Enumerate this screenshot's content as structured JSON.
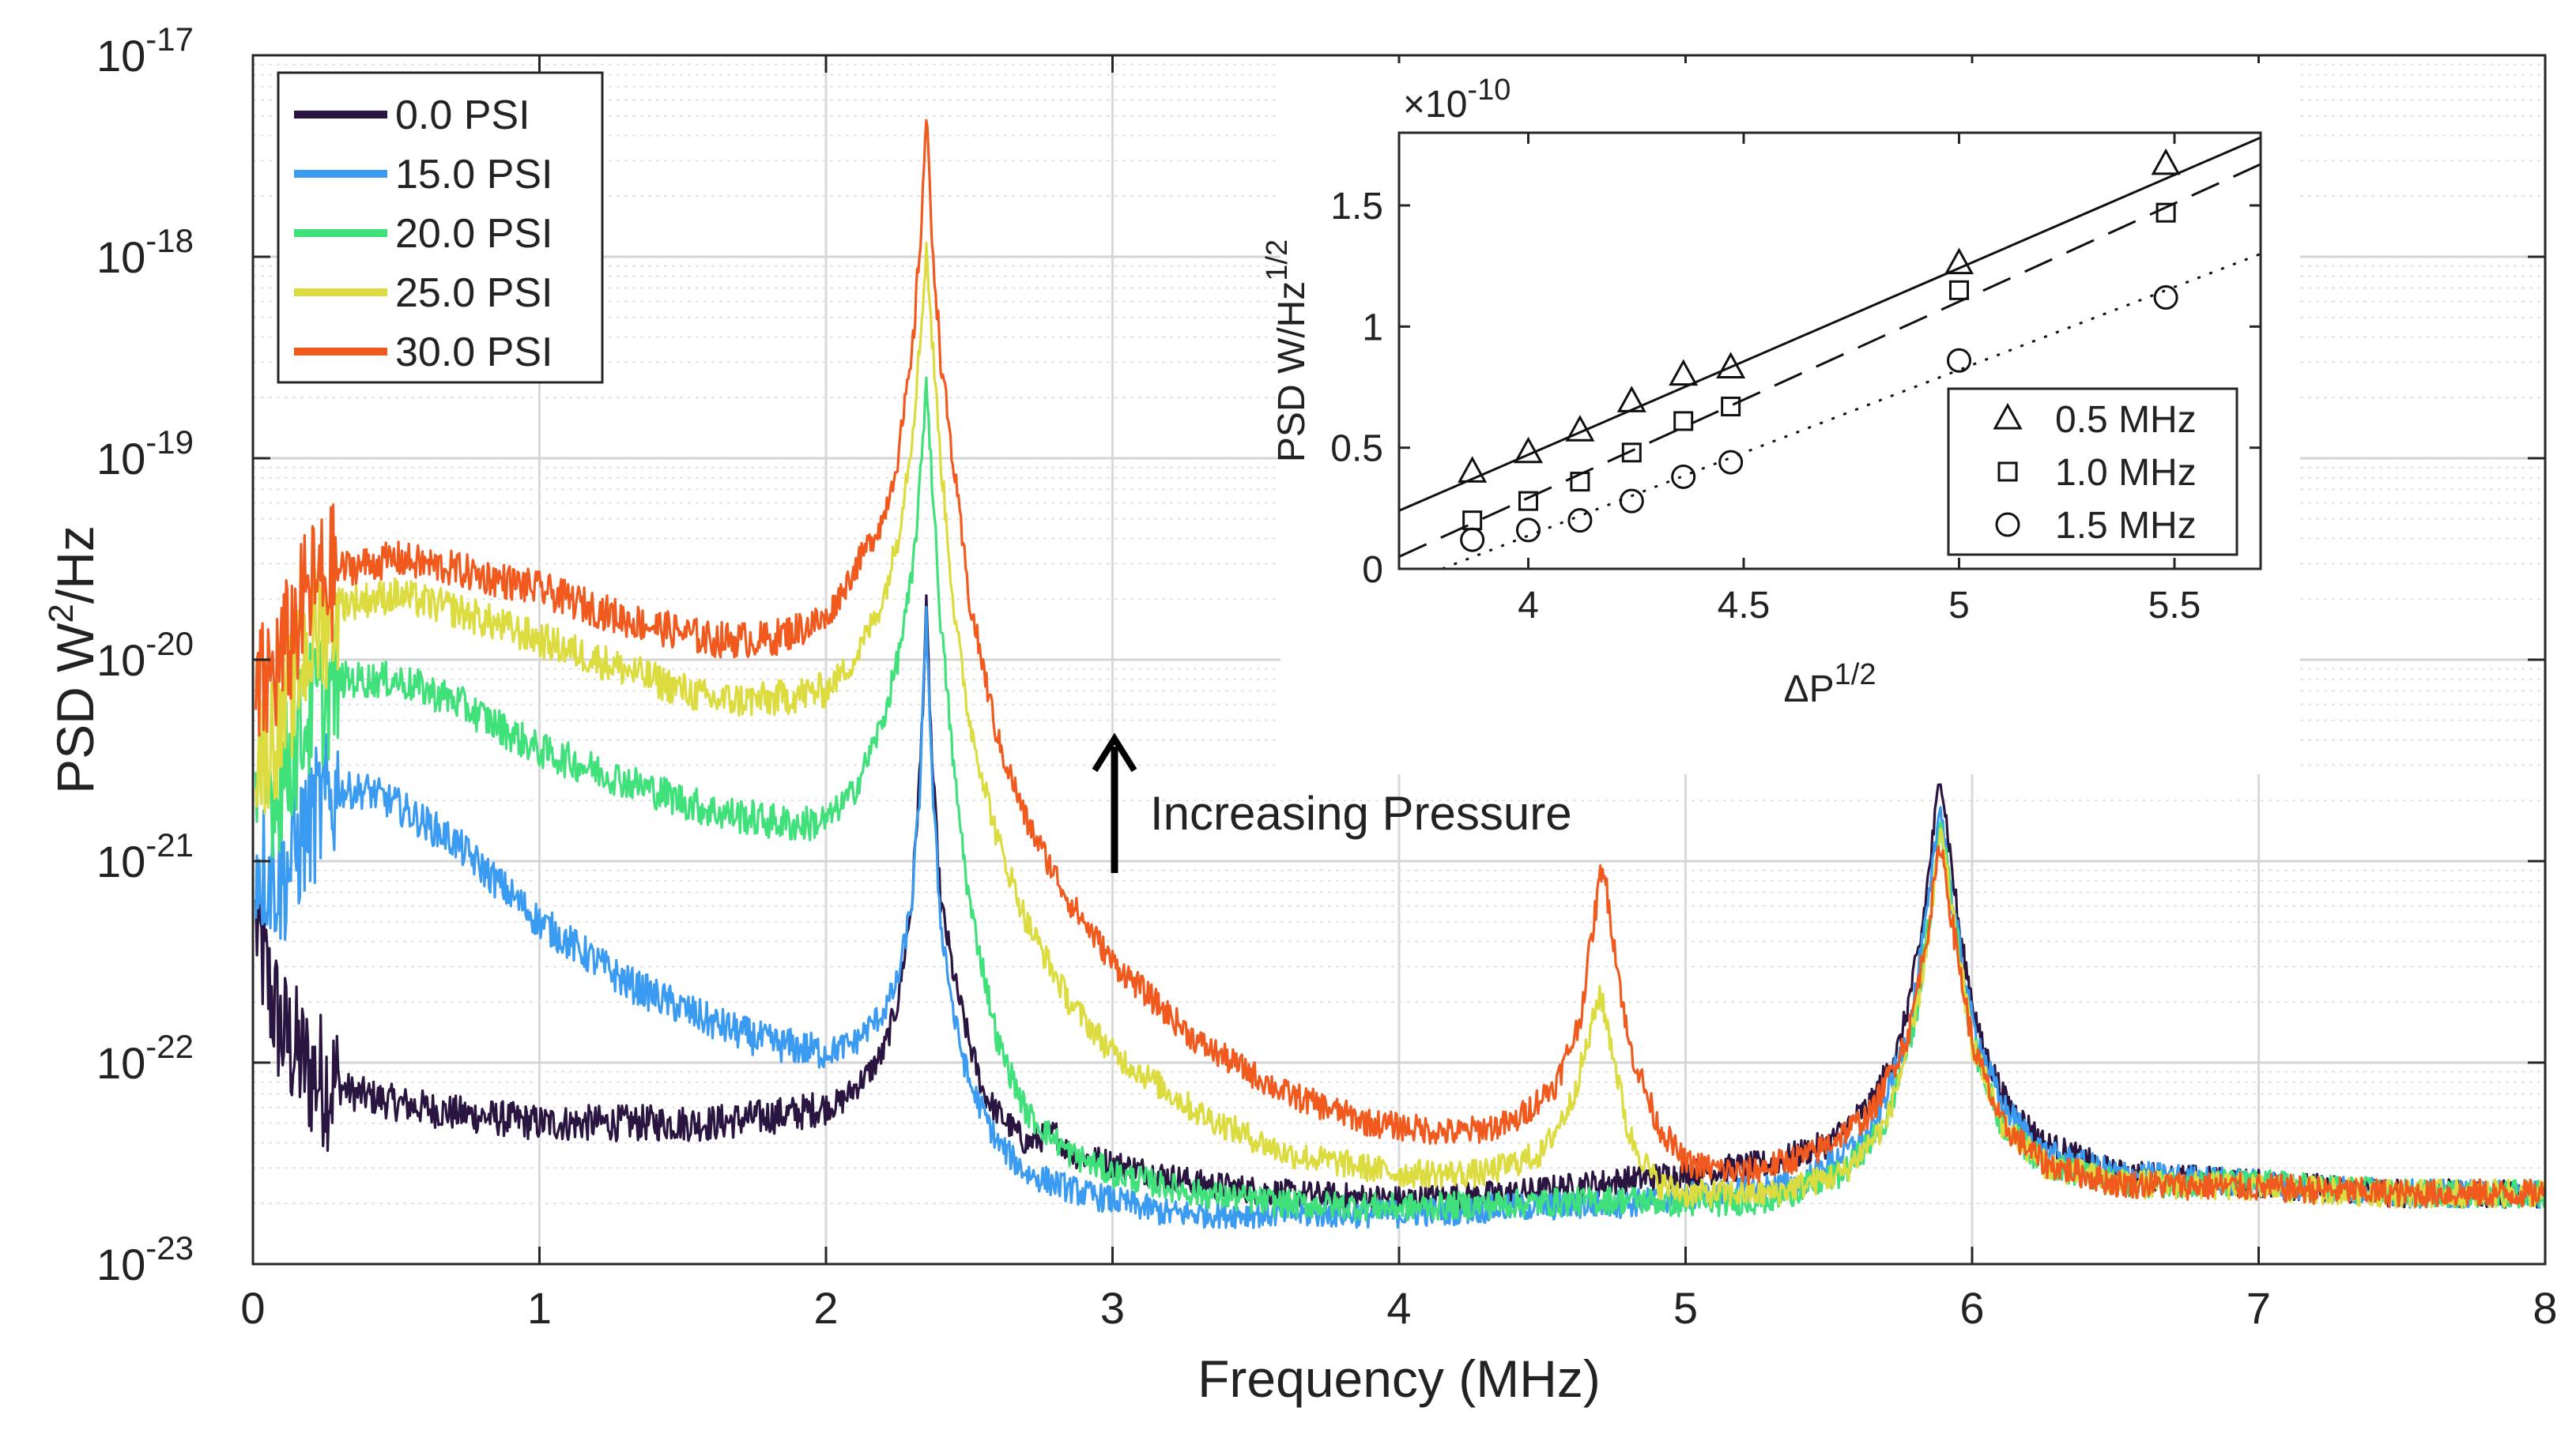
{
  "chart_data": [
    {
      "type": "line",
      "title": "",
      "xlabel": "Frequency (MHz)",
      "ylabel": "PSD W²/Hz",
      "ylabel_base": "PSD W",
      "ylabel_sup": "2",
      "ylabel_tail": "/Hz",
      "yscale": "log",
      "xlim": [
        0,
        8
      ],
      "ylim_exp": [
        -23,
        -17
      ],
      "xticks": [
        0,
        1,
        2,
        3,
        4,
        5,
        6,
        7,
        8
      ],
      "xtick_labels": [
        "0",
        "1",
        "2",
        "3",
        "4",
        "5",
        "6",
        "7",
        "8"
      ],
      "yticks_exp": [
        -23,
        -22,
        -21,
        -20,
        -19,
        -18,
        -17
      ],
      "ytick_base": "10",
      "ytick_exp_labels": [
        "-23",
        "-22",
        "-21",
        "-20",
        "-19",
        "-18",
        "-17"
      ],
      "grid": true,
      "legend_position": "top-left",
      "annotation": "Increasing Pressure",
      "annotation_arrow": "up",
      "series": [
        {
          "name": "0.0 PSI",
          "color": "#2a1440",
          "x": [
            0.01,
            0.05,
            0.1,
            0.2,
            0.35,
            0.5,
            0.7,
            1.0,
            1.3,
            1.6,
            1.9,
            2.05,
            2.15,
            2.2,
            2.25,
            2.3,
            2.33,
            2.35,
            2.37,
            2.4,
            2.45,
            2.5,
            2.55,
            2.6,
            2.7,
            2.8,
            2.85,
            3.0,
            3.3,
            3.6,
            4.0,
            4.4,
            4.7,
            5.0,
            5.3,
            5.5,
            5.65,
            5.75,
            5.82,
            5.87,
            5.89,
            5.91,
            5.96,
            6.03,
            6.12,
            6.25,
            6.5,
            7.0,
            7.5,
            8.0
          ],
          "logy": [
            -21.3,
            -21.6,
            -21.85,
            -22.05,
            -22.15,
            -22.2,
            -22.25,
            -22.3,
            -22.3,
            -22.3,
            -22.25,
            -22.2,
            -22.05,
            -21.95,
            -21.7,
            -21.2,
            -20.5,
            -19.75,
            -20.5,
            -21.2,
            -21.6,
            -21.9,
            -22.15,
            -22.25,
            -22.4,
            -22.35,
            -22.45,
            -22.5,
            -22.6,
            -22.65,
            -22.68,
            -22.65,
            -22.6,
            -22.55,
            -22.5,
            -22.4,
            -22.2,
            -21.9,
            -21.4,
            -20.8,
            -20.55,
            -20.8,
            -21.4,
            -21.9,
            -22.2,
            -22.4,
            -22.55,
            -22.6,
            -22.65,
            -22.65
          ]
        },
        {
          "name": "15.0 PSI",
          "color": "#3a9bf0",
          "x": [
            0.01,
            0.1,
            0.2,
            0.3,
            0.4,
            0.5,
            0.7,
            1.0,
            1.3,
            1.6,
            1.8,
            2.0,
            2.1,
            2.2,
            2.25,
            2.3,
            2.33,
            2.35,
            2.37,
            2.4,
            2.45,
            2.5,
            2.6,
            2.7,
            2.9,
            3.2,
            3.6,
            4.0,
            4.4,
            4.8,
            5.1,
            5.4,
            5.65,
            5.78,
            5.85,
            5.89,
            5.93,
            6.0,
            6.1,
            6.25,
            6.5,
            7.0,
            7.5,
            8.0
          ],
          "logy": [
            -21.0,
            -21.1,
            -20.8,
            -20.65,
            -20.65,
            -20.72,
            -20.9,
            -21.3,
            -21.6,
            -21.8,
            -21.9,
            -21.95,
            -21.9,
            -21.75,
            -21.6,
            -21.2,
            -20.6,
            -19.75,
            -20.6,
            -21.3,
            -21.8,
            -22.1,
            -22.4,
            -22.55,
            -22.65,
            -22.75,
            -22.75,
            -22.75,
            -22.72,
            -22.7,
            -22.65,
            -22.6,
            -22.35,
            -21.85,
            -21.2,
            -20.7,
            -21.2,
            -21.8,
            -22.2,
            -22.45,
            -22.55,
            -22.6,
            -22.65,
            -22.65
          ]
        },
        {
          "name": "20.0 PSI",
          "color": "#40e07a",
          "x": [
            0.01,
            0.1,
            0.2,
            0.3,
            0.5,
            0.7,
            1.0,
            1.3,
            1.6,
            1.8,
            1.9,
            2.0,
            2.1,
            2.2,
            2.25,
            2.3,
            2.33,
            2.35,
            2.37,
            2.4,
            2.45,
            2.5,
            2.6,
            2.7,
            2.85,
            3.0,
            3.3,
            3.6,
            4.0,
            4.4,
            4.8,
            5.0,
            5.3,
            5.55,
            5.7,
            5.8,
            5.86,
            5.89,
            5.93,
            6.0,
            6.1,
            6.25,
            6.5,
            7.0,
            7.5,
            8.0
          ],
          "logy": [
            -20.7,
            -20.6,
            -20.25,
            -20.1,
            -20.1,
            -20.2,
            -20.45,
            -20.6,
            -20.75,
            -20.8,
            -20.82,
            -20.8,
            -20.65,
            -20.3,
            -20.0,
            -19.6,
            -19.1,
            -18.6,
            -19.1,
            -19.8,
            -20.6,
            -21.2,
            -21.9,
            -22.25,
            -22.45,
            -22.55,
            -22.65,
            -22.7,
            -22.72,
            -22.7,
            -22.68,
            -22.7,
            -22.68,
            -22.55,
            -22.3,
            -21.8,
            -21.2,
            -20.8,
            -21.2,
            -21.9,
            -22.3,
            -22.5,
            -22.6,
            -22.6,
            -22.65,
            -22.65
          ]
        },
        {
          "name": "25.0 PSI",
          "color": "#dcdc40",
          "x": [
            0.01,
            0.1,
            0.2,
            0.3,
            0.5,
            0.7,
            1.0,
            1.3,
            1.6,
            1.8,
            2.0,
            2.1,
            2.2,
            2.25,
            2.3,
            2.33,
            2.35,
            2.37,
            2.4,
            2.45,
            2.5,
            2.6,
            2.7,
            2.85,
            3.0,
            3.3,
            3.6,
            4.0,
            4.3,
            4.5,
            4.6,
            4.66,
            4.7,
            4.74,
            4.8,
            4.9,
            5.0,
            5.3,
            5.55,
            5.7,
            5.8,
            5.86,
            5.89,
            5.93,
            6.0,
            6.1,
            6.25,
            6.5,
            7.0,
            7.5,
            8.0
          ],
          "logy": [
            -20.5,
            -20.3,
            -19.9,
            -19.72,
            -19.68,
            -19.75,
            -19.9,
            -20.05,
            -20.2,
            -20.2,
            -20.15,
            -20.0,
            -19.7,
            -19.4,
            -18.9,
            -18.4,
            -17.95,
            -18.4,
            -19.0,
            -19.8,
            -20.3,
            -20.9,
            -21.3,
            -21.7,
            -21.95,
            -22.25,
            -22.45,
            -22.55,
            -22.55,
            -22.45,
            -22.2,
            -21.9,
            -21.65,
            -21.9,
            -22.35,
            -22.6,
            -22.65,
            -22.65,
            -22.55,
            -22.3,
            -21.8,
            -21.25,
            -20.85,
            -21.25,
            -21.9,
            -22.3,
            -22.5,
            -22.6,
            -22.62,
            -22.65,
            -22.65
          ]
        },
        {
          "name": "30.0 PSI",
          "color": "#f05a1e",
          "x": [
            0.01,
            0.1,
            0.2,
            0.3,
            0.5,
            0.7,
            1.0,
            1.3,
            1.6,
            1.8,
            2.0,
            2.1,
            2.2,
            2.25,
            2.3,
            2.33,
            2.35,
            2.37,
            2.4,
            2.45,
            2.5,
            2.6,
            2.7,
            2.85,
            3.0,
            3.3,
            3.6,
            3.9,
            4.2,
            4.4,
            4.55,
            4.63,
            4.68,
            4.71,
            4.74,
            4.8,
            4.9,
            5.0,
            5.2,
            5.45,
            5.65,
            5.78,
            5.85,
            5.89,
            5.93,
            6.0,
            6.1,
            6.25,
            6.5,
            7.0,
            7.5,
            8.0
          ],
          "logy": [
            -20.2,
            -20.0,
            -19.65,
            -19.55,
            -19.5,
            -19.55,
            -19.65,
            -19.8,
            -19.9,
            -19.9,
            -19.8,
            -19.55,
            -19.3,
            -19.0,
            -18.5,
            -17.9,
            -17.3,
            -17.9,
            -18.5,
            -19.1,
            -19.7,
            -20.4,
            -20.8,
            -21.2,
            -21.5,
            -21.9,
            -22.15,
            -22.3,
            -22.35,
            -22.3,
            -22.1,
            -21.8,
            -21.3,
            -21.0,
            -21.3,
            -21.9,
            -22.3,
            -22.5,
            -22.55,
            -22.45,
            -22.25,
            -21.85,
            -21.3,
            -20.9,
            -21.3,
            -21.9,
            -22.3,
            -22.5,
            -22.6,
            -22.62,
            -22.65,
            -22.65
          ]
        }
      ]
    },
    {
      "type": "scatter",
      "title": "",
      "xlabel": "ΔP1/2",
      "xlabel_base": "ΔP",
      "xlabel_sup": "1/2",
      "ylabel": "PSD W/Hz1/2",
      "ylabel_base": "PSD W/Hz",
      "ylabel_sup": "1/2",
      "multiplier_label": "×10",
      "multiplier_exp": "-10",
      "xlim": [
        3.7,
        5.7
      ],
      "ylim": [
        0,
        1.8
      ],
      "xticks": [
        4,
        4.5,
        5,
        5.5
      ],
      "xtick_labels": [
        "4",
        "4.5",
        "5",
        "5.5"
      ],
      "yticks": [
        0,
        0.5,
        1,
        1.5
      ],
      "ytick_labels": [
        "0",
        "0.5",
        "1",
        "1.5"
      ],
      "grid": false,
      "legend_position": "bottom-right",
      "series": [
        {
          "name": "0.5 MHz",
          "marker": "triangle",
          "fit_line": "solid",
          "fit": [
            [
              3.7,
              0.24
            ],
            [
              5.7,
              1.78
            ]
          ],
          "x": [
            3.87,
            4.0,
            4.12,
            4.24,
            4.36,
            4.47,
            5.0,
            5.48
          ],
          "y": [
            0.4,
            0.48,
            0.57,
            0.69,
            0.8,
            0.83,
            1.26,
            1.67
          ]
        },
        {
          "name": "1.0 MHz",
          "marker": "square",
          "fit_line": "dashed",
          "fit": [
            [
              3.7,
              0.05
            ],
            [
              5.7,
              1.67
            ]
          ],
          "x": [
            3.87,
            4.0,
            4.12,
            4.24,
            4.36,
            4.47,
            5.0,
            5.48
          ],
          "y": [
            0.2,
            0.28,
            0.36,
            0.48,
            0.61,
            0.67,
            1.15,
            1.47
          ]
        },
        {
          "name": "1.5 MHz",
          "marker": "circle",
          "fit_line": "dotted",
          "fit": [
            [
              3.8,
              0.0
            ],
            [
              5.7,
              1.3
            ]
          ],
          "x": [
            3.87,
            4.0,
            4.12,
            4.24,
            4.36,
            4.47,
            5.0,
            5.48
          ],
          "y": [
            0.12,
            0.16,
            0.2,
            0.28,
            0.38,
            0.44,
            0.86,
            1.12
          ]
        }
      ]
    }
  ]
}
